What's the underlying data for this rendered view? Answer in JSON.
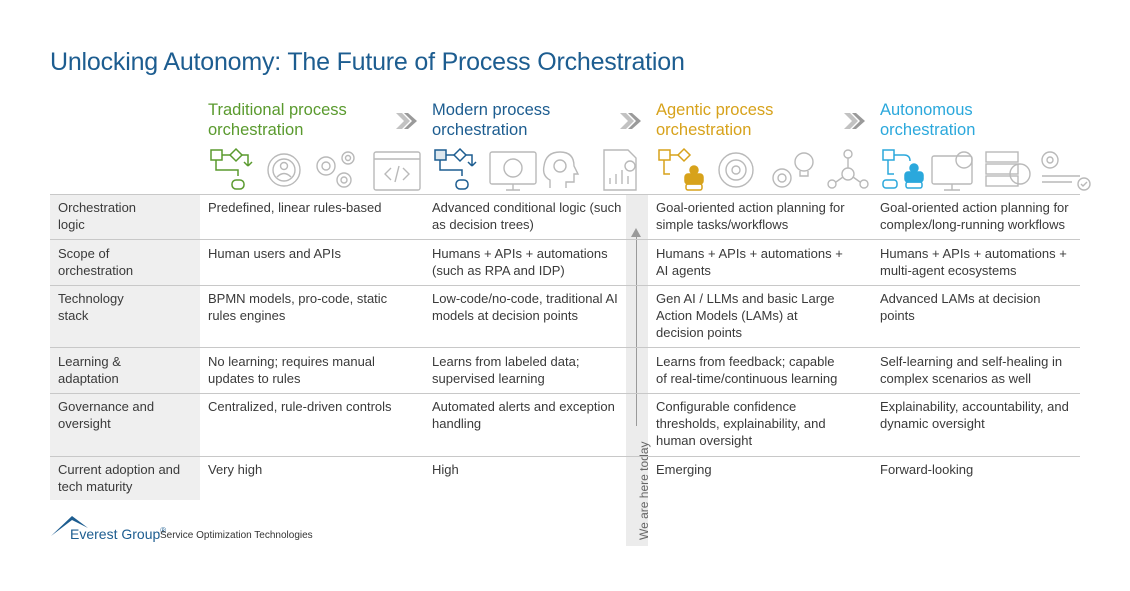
{
  "title": "Unlocking Autonomy: The Future of Process Orchestration",
  "colors": {
    "traditional": "#5a9a2e",
    "modern": "#1d5d90",
    "agentic": "#d7a21b",
    "autonomous": "#2ba8dc"
  },
  "columns": [
    {
      "line1": "Traditional process",
      "line2": "orchestration"
    },
    {
      "line1": "Modern process",
      "line2": "orchestration"
    },
    {
      "line1": "Agentic process",
      "line2": "orchestration"
    },
    {
      "line1": "Autonomous",
      "line2": "orchestration"
    }
  ],
  "rows": [
    {
      "label1": "Orchestration",
      "label2": "logic",
      "cells": [
        [
          "Predefined, linear rules-based",
          ""
        ],
        [
          "Advanced conditional logic (such",
          "as decision trees)"
        ],
        [
          "Goal-oriented action planning for",
          "simple tasks/workflows"
        ],
        [
          "Goal-oriented action planning for",
          "complex/long-running workflows"
        ]
      ]
    },
    {
      "label1": "Scope of",
      "label2": "orchestration",
      "cells": [
        [
          "Human users and APIs",
          ""
        ],
        [
          "Humans + APIs + automations",
          "(such as RPA and IDP)"
        ],
        [
          "Humans + APIs + automations +",
          "AI agents"
        ],
        [
          "Humans + APIs + automations +",
          "multi-agent ecosystems"
        ]
      ]
    },
    {
      "label1": "Technology",
      "label2": "stack",
      "cells": [
        [
          "BPMN models, pro-code, static",
          "rules engines",
          ""
        ],
        [
          "Low-code/no-code, traditional AI",
          "models at decision points",
          ""
        ],
        [
          "Gen AI / LLMs and basic Large",
          "Action Models (LAMs) at",
          "decision points"
        ],
        [
          "Advanced LAMs at decision",
          "points",
          ""
        ]
      ]
    },
    {
      "label1": "Learning &",
      "label2": "adaptation",
      "cells": [
        [
          "No learning; requires manual",
          "updates to rules"
        ],
        [
          "Learns from labeled data;",
          "supervised learning"
        ],
        [
          "Learns from feedback; capable",
          "of real-time/continuous learning"
        ],
        [
          "Self-learning and self-healing in",
          "complex scenarios as well"
        ]
      ]
    },
    {
      "label1": "Governance and",
      "label2": "oversight",
      "cells": [
        [
          "Centralized, rule-driven controls",
          "",
          ""
        ],
        [
          "Automated alerts and exception",
          "handling",
          ""
        ],
        [
          "Configurable confidence",
          "thresholds, explainability, and",
          "human oversight"
        ],
        [
          "Explainability, accountability, and",
          "dynamic oversight",
          ""
        ]
      ]
    },
    {
      "label1": "Current adoption and",
      "label2": "tech maturity",
      "cells": [
        [
          "Very high"
        ],
        [
          "High"
        ],
        [
          "Emerging"
        ],
        [
          "Forward-looking"
        ]
      ]
    }
  ],
  "today_label": "We are here today",
  "footer": {
    "brand": "Everest Group",
    "reg": "®",
    "sub": "Service Optimization Technologies"
  }
}
